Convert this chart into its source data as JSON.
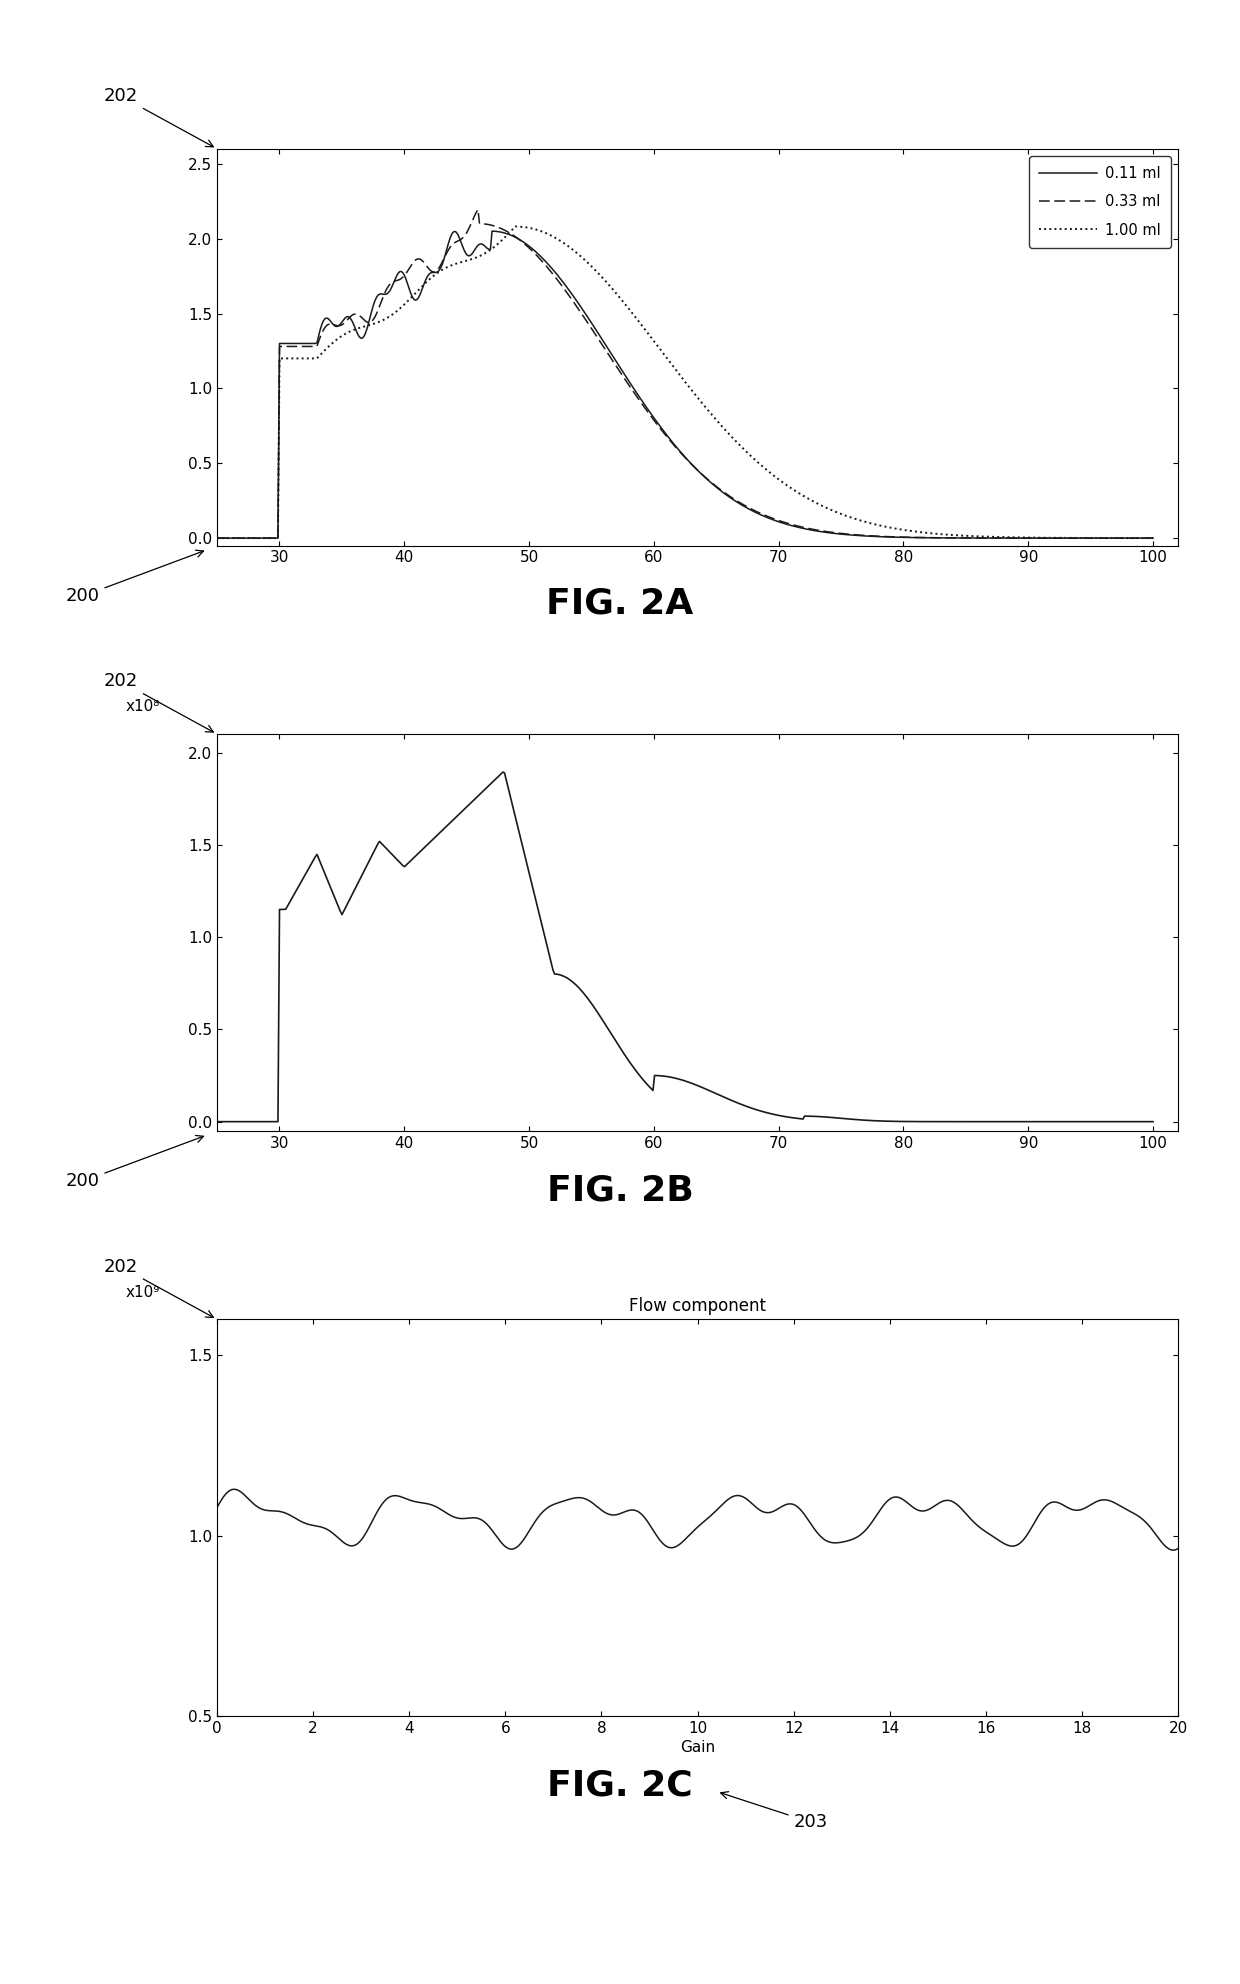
{
  "fig2a": {
    "title": "FIG. 2A",
    "xlim": [
      25,
      102
    ],
    "ylim": [
      -0.05,
      2.6
    ],
    "xticks": [
      30,
      40,
      50,
      60,
      70,
      80,
      90,
      100
    ],
    "yticks": [
      0,
      0.5,
      1.0,
      1.5,
      2.0,
      2.5
    ],
    "legend_labels": [
      "0.11 ml",
      "0.33 ml",
      "1.00 ml"
    ],
    "label202": "202",
    "label200": "200"
  },
  "fig2b": {
    "title": "FIG. 2B",
    "xlim": [
      25,
      102
    ],
    "ylim": [
      -0.05,
      2.1
    ],
    "xticks": [
      30,
      40,
      50,
      60,
      70,
      80,
      90,
      100
    ],
    "yticks": [
      0,
      0.5,
      1.0,
      1.5,
      2.0
    ],
    "ylabel_exp": "x10⁸",
    "label202": "202",
    "label200": "200"
  },
  "fig2c": {
    "title": "FIG. 2C",
    "xlim": [
      0,
      20
    ],
    "ylim": [
      0.5,
      1.6
    ],
    "xticks": [
      0,
      2,
      4,
      6,
      8,
      10,
      12,
      14,
      16,
      18,
      20
    ],
    "yticks": [
      0.5,
      1.0,
      1.5
    ],
    "ylabel_exp": "x10⁹",
    "xlabel": "Gain",
    "plot_title": "Flow component",
    "label202": "202",
    "label203": "203"
  },
  "background_color": "#ffffff",
  "line_color": "#1a1a1a",
  "fig_caption_fontsize": 26,
  "annotation_fontsize": 13
}
